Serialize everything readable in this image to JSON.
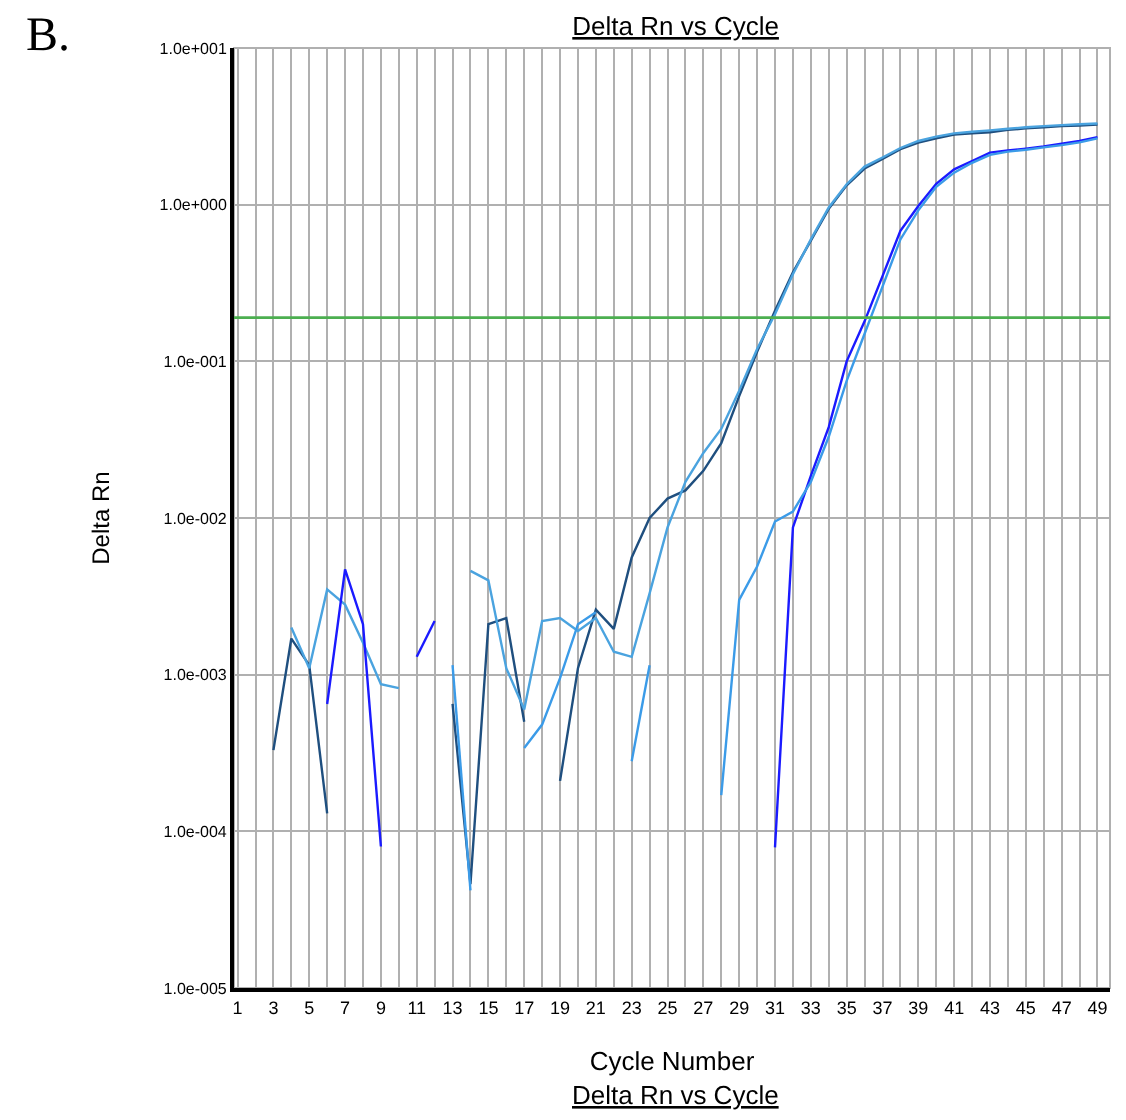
{
  "chart_data": {
    "type": "line",
    "title": "Delta Rn vs Cycle",
    "xlabel": "Cycle Number",
    "ylabel": "Delta Rn",
    "annotations": [
      "B.",
      "Delta Rn vs Cycle"
    ],
    "x": [
      3,
      4,
      5,
      6,
      7,
      8,
      9,
      10,
      11,
      12,
      13,
      14,
      15,
      16,
      17,
      18,
      19,
      20,
      21,
      22,
      23,
      24,
      25,
      26,
      27,
      28,
      29,
      30,
      31,
      32,
      33,
      34,
      35,
      36,
      37,
      38,
      39,
      40,
      41,
      42,
      43,
      44,
      45,
      46,
      47,
      48,
      49
    ],
    "series": [
      {
        "color": "#1f4f7f",
        "values": [
          0.00033,
          0.0017,
          0.00115,
          0.00013,
          null,
          null,
          null,
          null,
          null,
          null,
          0.00065,
          4.6e-05,
          0.0021,
          0.0023,
          0.0005,
          null,
          0.00021,
          0.0011,
          0.0026,
          0.00196,
          0.0056,
          0.01,
          0.0133,
          0.015,
          0.02,
          0.03,
          0.06,
          0.115,
          0.21,
          0.37,
          0.59,
          0.94,
          1.33,
          1.7,
          1.96,
          2.26,
          2.49,
          2.65,
          2.8,
          2.85,
          2.9,
          3.0,
          3.07,
          3.12,
          3.17,
          3.2,
          3.25
        ]
      },
      {
        "color": "#4aa3df",
        "values": [
          null,
          0.002,
          0.0011,
          0.0035,
          0.0028,
          0.0016,
          0.00087,
          0.00082,
          null,
          null,
          null,
          0.0046,
          0.004,
          0.0011,
          0.0006,
          0.0022,
          0.0023,
          0.0019,
          0.0023,
          0.0014,
          0.0013,
          0.0033,
          0.0087,
          0.017,
          0.026,
          0.037,
          0.065,
          0.12,
          0.2,
          0.36,
          0.6,
          0.96,
          1.35,
          1.75,
          2.0,
          2.3,
          2.55,
          2.72,
          2.85,
          2.92,
          2.98,
          3.05,
          3.12,
          3.17,
          3.22,
          3.26,
          3.3
        ]
      },
      {
        "color": "#1a1aff",
        "values": [
          null,
          null,
          null,
          0.00065,
          0.0047,
          0.0021,
          8e-05,
          null,
          0.0013,
          0.0022,
          null,
          null,
          null,
          null,
          null,
          null,
          null,
          null,
          null,
          null,
          null,
          null,
          null,
          null,
          null,
          null,
          null,
          null,
          7.9e-05,
          0.0087,
          0.0186,
          0.038,
          0.1,
          0.18,
          0.35,
          0.68,
          0.98,
          1.36,
          1.68,
          1.9,
          2.15,
          2.22,
          2.28,
          2.35,
          2.45,
          2.55,
          2.7
        ]
      },
      {
        "color": "#3b9be8",
        "values": [
          null,
          null,
          null,
          null,
          null,
          null,
          null,
          null,
          null,
          null,
          0.00115,
          4.2e-05,
          null,
          null,
          0.00034,
          0.00048,
          0.00095,
          0.0021,
          0.0025,
          null,
          0.00028,
          0.00115,
          null,
          null,
          null,
          0.00017,
          0.003,
          0.0049,
          0.0095,
          0.011,
          0.017,
          0.033,
          0.075,
          0.15,
          0.3,
          0.6,
          0.92,
          1.3,
          1.6,
          1.85,
          2.08,
          2.18,
          2.24,
          2.32,
          2.4,
          2.5,
          2.65
        ]
      }
    ],
    "log": "y",
    "xlim": [
      0.8,
      49.7
    ],
    "ylim": [
      1e-05,
      10
    ],
    "xticks": [
      1,
      {
        "value": 2,
        "label": null
      },
      3,
      {
        "value": 4,
        "label": null
      },
      5,
      {
        "value": 6,
        "label": null
      },
      7,
      {
        "value": 8,
        "label": null
      },
      9,
      {
        "value": 10,
        "label": null
      },
      11,
      {
        "value": 12,
        "label": null
      },
      13,
      {
        "value": 14,
        "label": null
      },
      15,
      {
        "value": 16,
        "label": null
      },
      17,
      {
        "value": 18,
        "label": null
      },
      19,
      {
        "value": 20,
        "label": null
      },
      21,
      {
        "value": 22,
        "label": null
      },
      23,
      {
        "value": 24,
        "label": null
      },
      25,
      {
        "value": 26,
        "label": null
      },
      27,
      {
        "value": 28,
        "label": null
      },
      29,
      {
        "value": 30,
        "label": null
      },
      31,
      {
        "value": 32,
        "label": null
      },
      33,
      {
        "value": 34,
        "label": null
      },
      35,
      {
        "value": 36,
        "label": null
      },
      37,
      {
        "value": 38,
        "label": null
      },
      39,
      {
        "value": 40,
        "label": null
      },
      41,
      {
        "value": 42,
        "label": null
      },
      43,
      {
        "value": 44,
        "label": null
      },
      45,
      {
        "value": 46,
        "label": null
      },
      47,
      {
        "value": 48,
        "label": null
      },
      49
    ],
    "yticks": [
      {
        "value": 1e-05,
        "label": "1.0e-005"
      },
      {
        "value": 0.0001,
        "label": "1.0e-004"
      },
      {
        "value": 0.001,
        "label": "1.0e-003"
      },
      {
        "value": 0.01,
        "label": "1.0e-002"
      },
      {
        "value": 0.1,
        "label": "1.0e-001"
      },
      {
        "value": 1,
        "label": "1.0e+000"
      },
      {
        "value": 10,
        "label": "1.0e+001"
      }
    ],
    "ref_lines": [
      {
        "axis": "y",
        "value": 0.19,
        "color": "#4caf50"
      }
    ],
    "grid": true,
    "marker": "none",
    "line_style": "solid"
  }
}
